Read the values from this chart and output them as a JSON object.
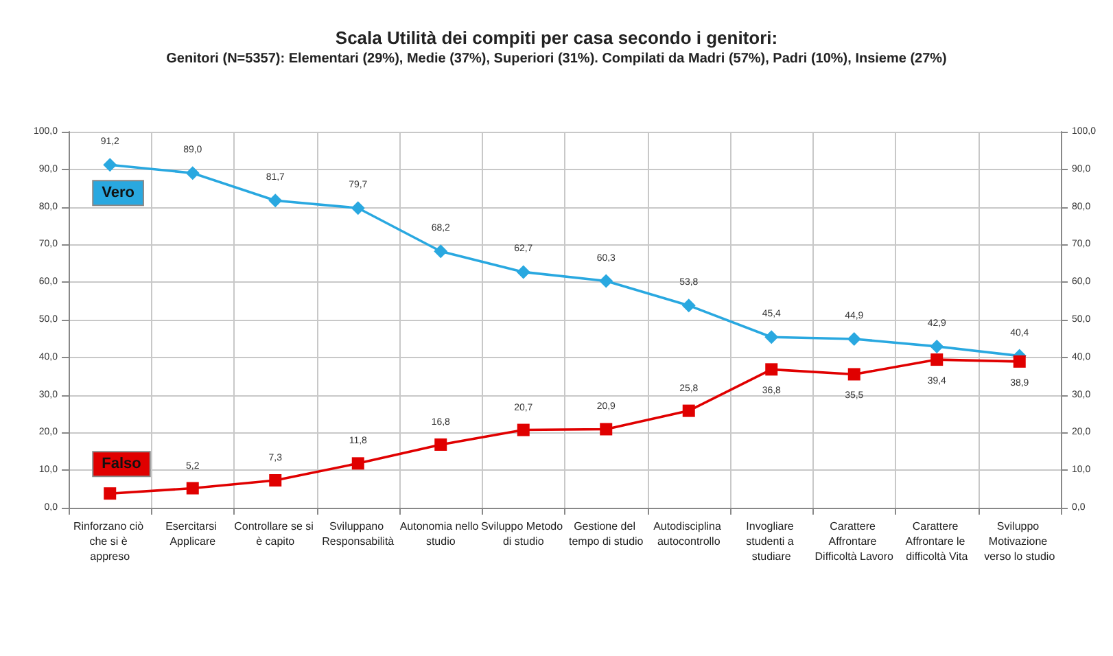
{
  "chart_data": {
    "type": "line",
    "title": "Scala Utilità dei compiti per casa secondo i genitori:",
    "subtitle": "Genitori (N=5357): Elementari (29%), Medie (37%), Superiori (31%). Compilati da Madri (57%), Padri (10%), Insieme (27%)",
    "categories": [
      "Rinforzano ciò che si è appreso",
      "Esercitarsi Applicare",
      "Controllare se si è capito",
      "Sviluppano Responsabilità",
      "Autonomia nello studio",
      "Sviluppo Metodo di studio",
      "Gestione del tempo di studio",
      "Autodisciplina autocontrollo",
      "Invogliare studenti a studiare",
      "Carattere Affrontare Difficoltà Lavoro",
      "Carattere Affrontare le difficoltà Vita",
      "Sviluppo Motivazione verso lo studio"
    ],
    "series": [
      {
        "name": "Vero",
        "color": "#29a8e0",
        "marker": "diamond",
        "values": [
          91.2,
          89.0,
          81.7,
          79.7,
          68.2,
          62.7,
          60.3,
          53.8,
          45.4,
          44.9,
          42.9,
          40.4
        ],
        "value_labels": [
          "91,2",
          "89,0",
          "81,7",
          "79,7",
          "68,2",
          "62,7",
          "60,3",
          "53,8",
          "45,4",
          "44,9",
          "42,9",
          "40,4"
        ]
      },
      {
        "name": "Falso",
        "color": "#e00000",
        "marker": "square",
        "values": [
          3.8,
          5.2,
          7.3,
          11.8,
          16.8,
          20.7,
          20.9,
          25.8,
          36.8,
          35.5,
          39.4,
          38.9
        ],
        "value_labels": [
          null,
          "5,2",
          "7,3",
          "11,8",
          "16,8",
          "20,7",
          "20,9",
          "25,8",
          "36,8",
          "35,5",
          "39,4",
          "38,9"
        ]
      }
    ],
    "ylim": [
      0,
      100
    ],
    "yticks": [
      {
        "value": 0,
        "label": "0,0"
      },
      {
        "value": 10,
        "label": "10,0"
      },
      {
        "value": 20,
        "label": "20,0"
      },
      {
        "value": 30,
        "label": "30,0"
      },
      {
        "value": 40,
        "label": "40,0"
      },
      {
        "value": 50,
        "label": "50,0"
      },
      {
        "value": 60,
        "label": "60,0"
      },
      {
        "value": 70,
        "label": "70,0"
      },
      {
        "value": 80,
        "label": "80,0"
      },
      {
        "value": 90,
        "label": "90,0"
      },
      {
        "value": 100,
        "label": "100,0"
      }
    ],
    "y2lim": [
      0,
      100
    ],
    "y2ticks": [
      {
        "value": 0,
        "label": "0,0"
      },
      {
        "value": 10,
        "label": "10,0"
      },
      {
        "value": 20,
        "label": "20,0"
      },
      {
        "value": 30,
        "label": "30,0"
      },
      {
        "value": 40,
        "label": "40,0"
      },
      {
        "value": 50,
        "label": "50,0"
      },
      {
        "value": 60,
        "label": "60,0"
      },
      {
        "value": 70,
        "label": "70,0"
      },
      {
        "value": 80,
        "label": "80,0"
      },
      {
        "value": 90,
        "label": "90,0"
      },
      {
        "value": 100,
        "label": "100,0"
      }
    ],
    "grid": true,
    "line_style": "solid"
  }
}
